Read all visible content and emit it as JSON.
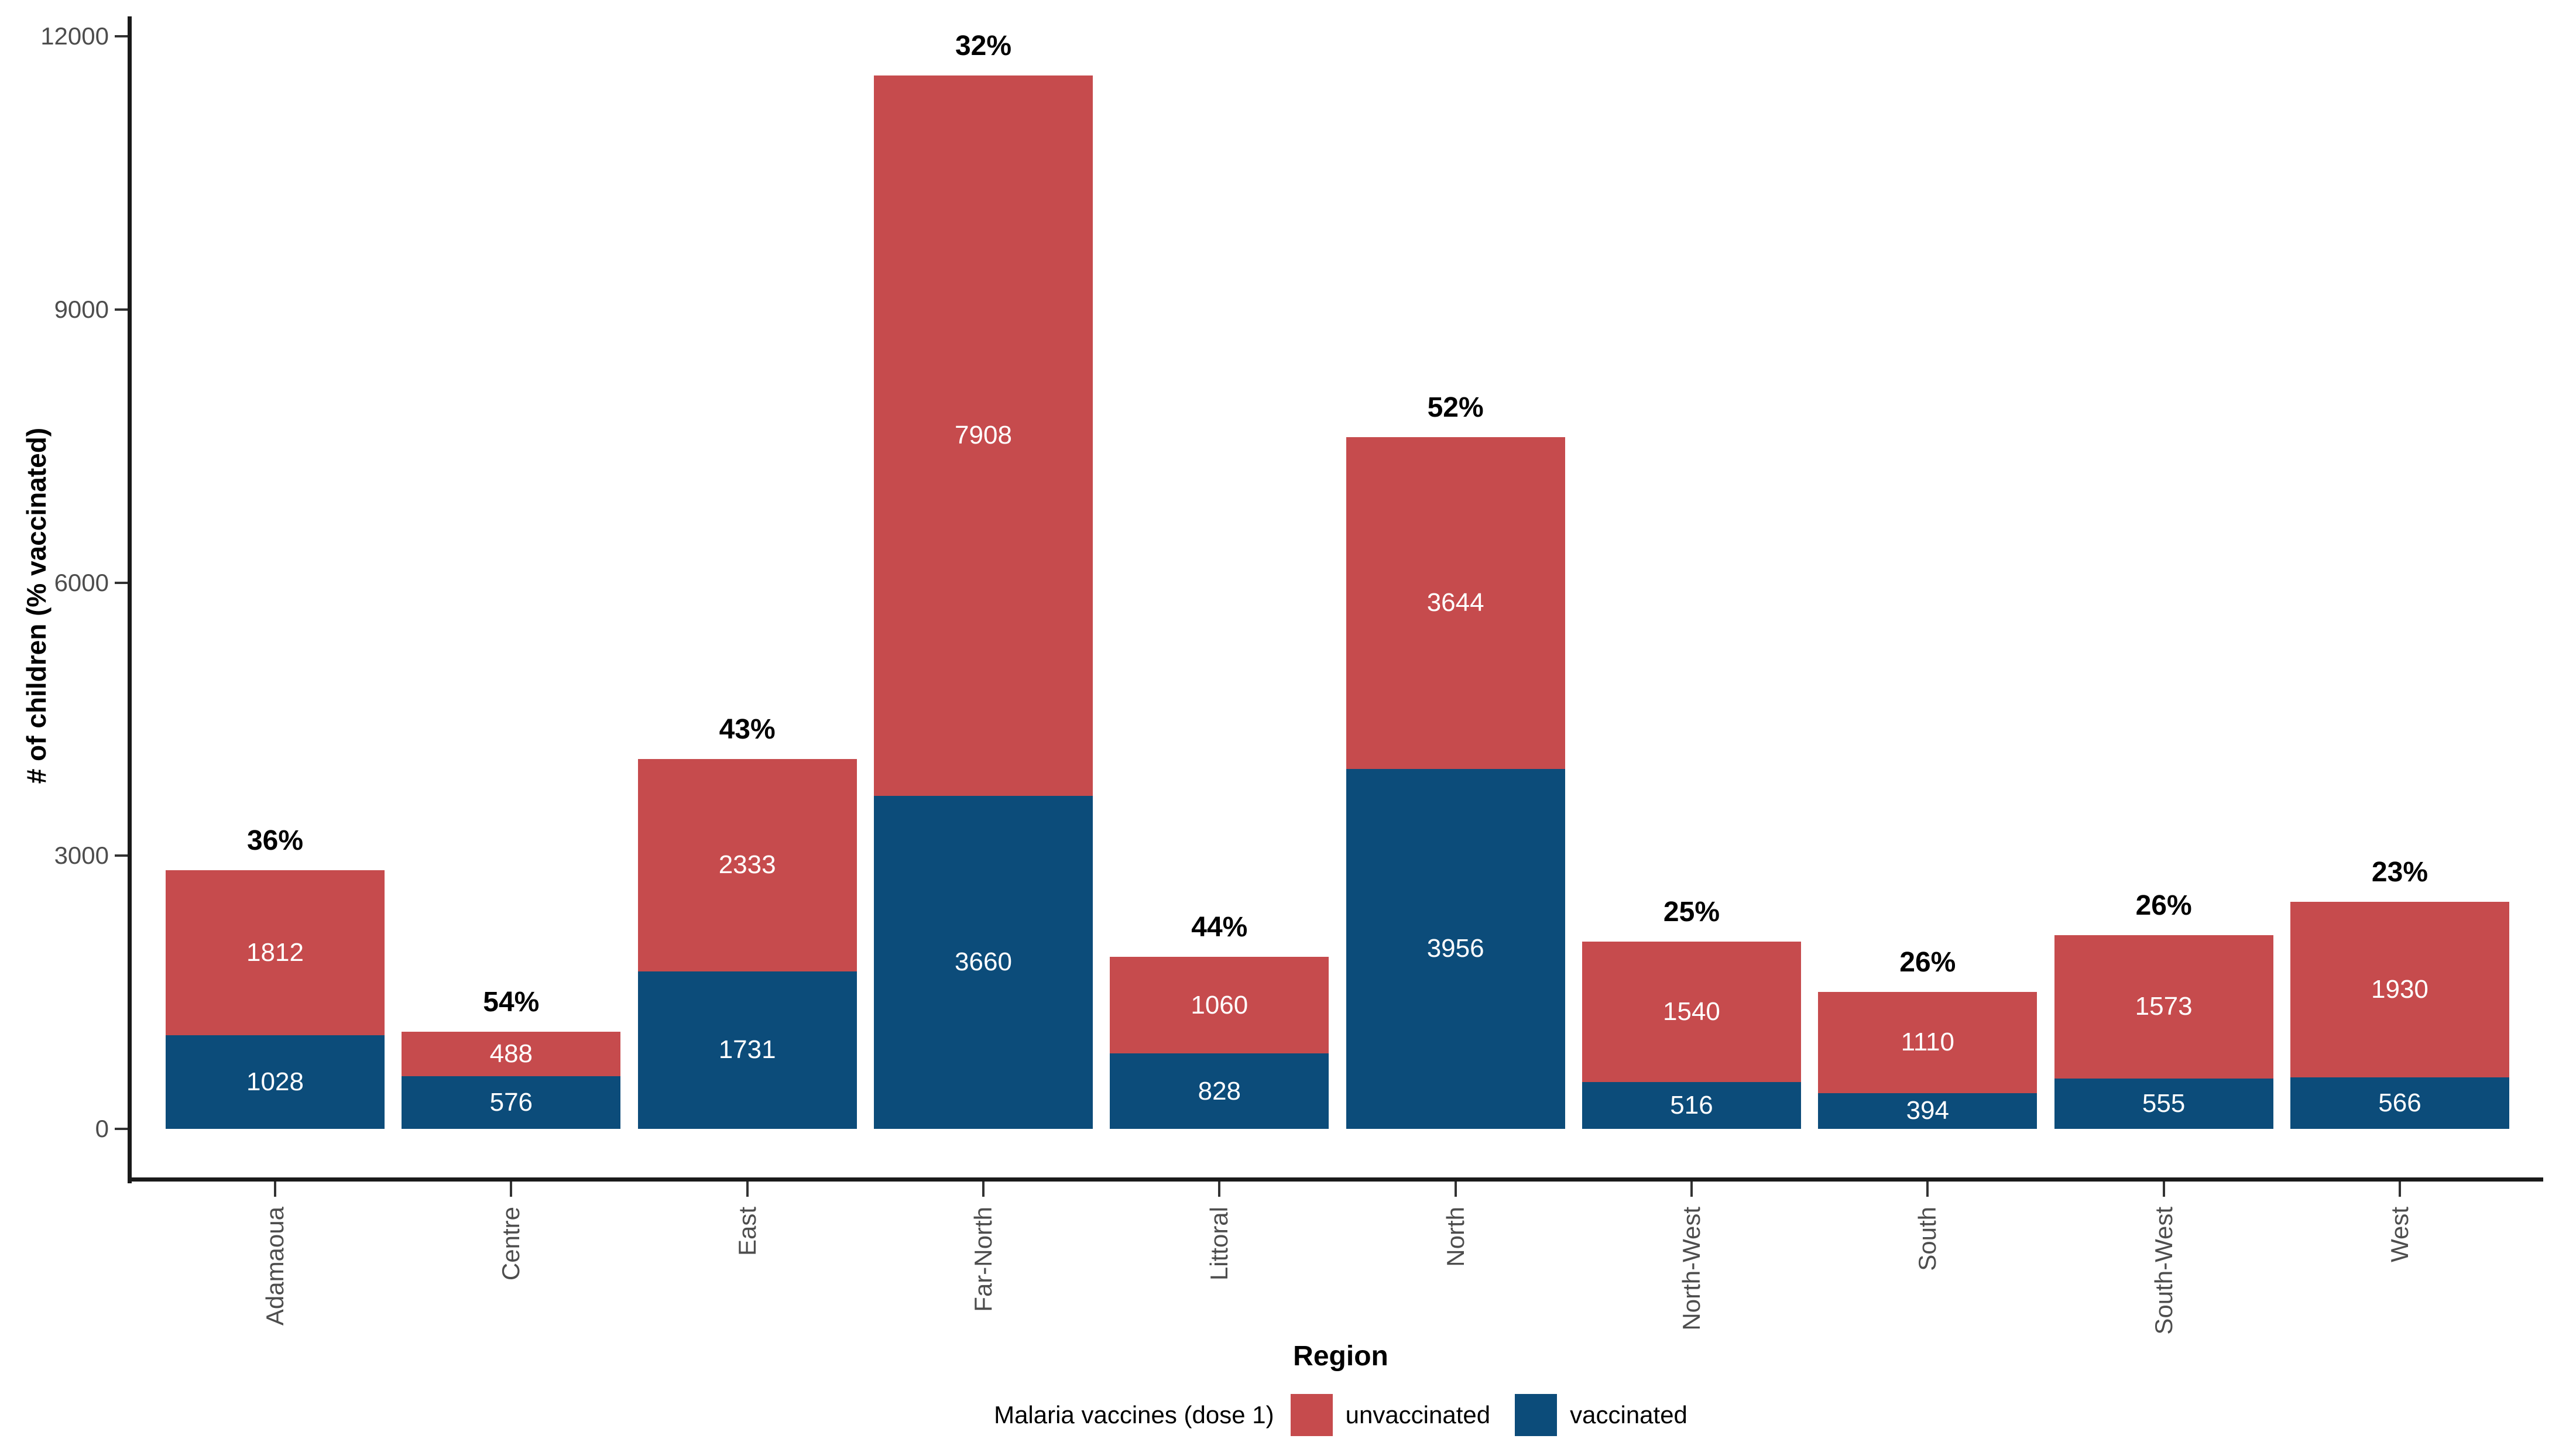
{
  "chart_data": {
    "type": "bar",
    "stacked": true,
    "title": "",
    "xlabel": "Region",
    "ylabel": "# of children (% vaccinated)",
    "ylim": [
      0,
      12000
    ],
    "yticks": [
      0,
      3000,
      6000,
      9000,
      12000
    ],
    "grid": false,
    "categories": [
      "Adamaoua",
      "Centre",
      "East",
      "Far-North",
      "Littoral",
      "North",
      "North-West",
      "South",
      "South-West",
      "West"
    ],
    "series": [
      {
        "name": "vaccinated",
        "color": "#0C4C7A",
        "values": [
          1028,
          576,
          1731,
          3660,
          828,
          3956,
          516,
          394,
          555,
          566
        ]
      },
      {
        "name": "unvaccinated",
        "color": "#C64B4D",
        "values": [
          1812,
          488,
          2333,
          7908,
          1060,
          3644,
          1540,
          1110,
          1573,
          1930
        ]
      }
    ],
    "bar_top_labels": [
      "36%",
      "54%",
      "43%",
      "32%",
      "44%",
      "52%",
      "25%",
      "26%",
      "26%",
      "23%"
    ],
    "legend": {
      "title": "Malaria vaccines (dose 1)",
      "position": "bottom",
      "entries": [
        {
          "label": "unvaccinated",
          "color": "#C64B4D"
        },
        {
          "label": "vaccinated",
          "color": "#0C4C7A"
        }
      ]
    }
  },
  "colors": {
    "unvaccinated": "#C64B4D",
    "vaccinated": "#0C4C7A",
    "axis_line": "#1a1a1a",
    "tick": "#333333",
    "tick_label": "#4d4d4d",
    "background": "#ffffff"
  }
}
